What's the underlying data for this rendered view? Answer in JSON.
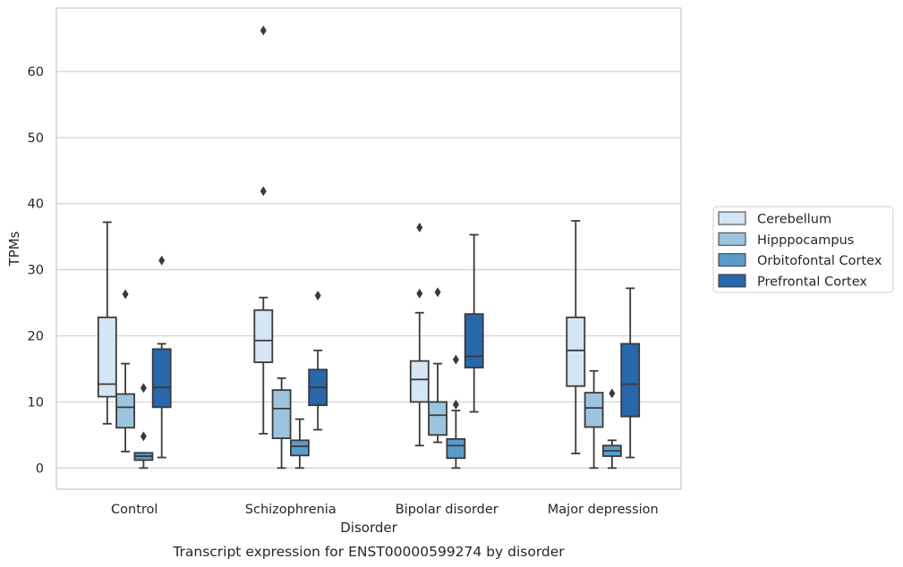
{
  "caption": "Transcript expression for ENST00000599274 by disorder",
  "colors": {
    "Cerebellum": "#d6e5f3",
    "Hipppocampus": "#9dc4de",
    "Orbitofontal Cortex": "#5a9bca",
    "Prefrontal Cortex": "#2867aa",
    "edge": "#3a3a3a",
    "grid": "#d0d0d0"
  },
  "chart_data": {
    "type": "box",
    "title": "",
    "xlabel": "Disorder",
    "ylabel": "TPMs",
    "ylim": [
      -3.2,
      69.6
    ],
    "yticks": [
      0,
      10,
      20,
      30,
      40,
      50,
      60
    ],
    "grid": "horizontal",
    "legend_position": "right-outside",
    "categories": [
      "Control",
      "Schizophrenia",
      "Bipolar disorder",
      "Major depression"
    ],
    "series": [
      {
        "name": "Cerebellum",
        "boxes": [
          {
            "whisker_low": 6.7,
            "q1": 10.8,
            "median": 12.7,
            "q3": 22.8,
            "whisker_high": 37.2,
            "outliers": []
          },
          {
            "whisker_low": 5.2,
            "q1": 16.0,
            "median": 19.3,
            "q3": 23.9,
            "whisker_high": 25.8,
            "outliers": [
              66.2,
              41.9
            ]
          },
          {
            "whisker_low": 3.4,
            "q1": 10.0,
            "median": 13.4,
            "q3": 16.2,
            "whisker_high": 23.5,
            "outliers": [
              36.4,
              26.4
            ]
          },
          {
            "whisker_low": 2.2,
            "q1": 12.4,
            "median": 17.8,
            "q3": 22.8,
            "whisker_high": 37.4,
            "outliers": []
          }
        ]
      },
      {
        "name": "Hipppocampus",
        "boxes": [
          {
            "whisker_low": 2.5,
            "q1": 6.1,
            "median": 9.2,
            "q3": 11.2,
            "whisker_high": 15.8,
            "outliers": [
              26.3
            ]
          },
          {
            "whisker_low": 0.0,
            "q1": 4.5,
            "median": 9.0,
            "q3": 11.8,
            "whisker_high": 13.6,
            "outliers": []
          },
          {
            "whisker_low": 3.9,
            "q1": 5.0,
            "median": 8.0,
            "q3": 10.0,
            "whisker_high": 15.8,
            "outliers": [
              26.6
            ]
          },
          {
            "whisker_low": 0.0,
            "q1": 6.2,
            "median": 9.1,
            "q3": 11.4,
            "whisker_high": 14.7,
            "outliers": []
          }
        ]
      },
      {
        "name": "Orbitofontal Cortex",
        "boxes": [
          {
            "whisker_low": 0.0,
            "q1": 1.2,
            "median": 1.8,
            "q3": 2.3,
            "whisker_high": 2.3,
            "outliers": [
              12.1,
              4.8
            ]
          },
          {
            "whisker_low": 0.0,
            "q1": 1.9,
            "median": 3.3,
            "q3": 4.2,
            "whisker_high": 7.4,
            "outliers": []
          },
          {
            "whisker_low": 0.0,
            "q1": 1.5,
            "median": 3.4,
            "q3": 4.4,
            "whisker_high": 8.7,
            "outliers": [
              16.4,
              9.6
            ]
          },
          {
            "whisker_low": 0.0,
            "q1": 1.8,
            "median": 2.6,
            "q3": 3.4,
            "whisker_high": 4.2,
            "outliers": [
              11.3
            ]
          }
        ]
      },
      {
        "name": "Prefrontal Cortex",
        "boxes": [
          {
            "whisker_low": 1.6,
            "q1": 9.2,
            "median": 12.2,
            "q3": 18.0,
            "whisker_high": 18.8,
            "outliers": [
              31.4
            ]
          },
          {
            "whisker_low": 5.8,
            "q1": 9.5,
            "median": 12.2,
            "q3": 14.9,
            "whisker_high": 17.8,
            "outliers": [
              26.1
            ]
          },
          {
            "whisker_low": 8.5,
            "q1": 15.2,
            "median": 16.9,
            "q3": 23.3,
            "whisker_high": 35.3,
            "outliers": []
          },
          {
            "whisker_low": 1.6,
            "q1": 7.8,
            "median": 12.7,
            "q3": 18.8,
            "whisker_high": 27.2,
            "outliers": []
          }
        ]
      }
    ]
  }
}
